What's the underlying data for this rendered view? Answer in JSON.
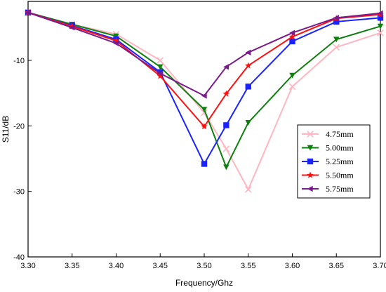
{
  "chart_data": {
    "type": "line",
    "title": "",
    "xlabel": "Frequency/Ghz",
    "ylabel": "S11/dB",
    "xlim": [
      3.3,
      3.7
    ],
    "ylim": [
      -40,
      -1
    ],
    "xticks": [
      "3.30",
      "3.35",
      "3.40",
      "3.45",
      "3.50",
      "3.55",
      "3.60",
      "3.65",
      "3.70"
    ],
    "yticks": [
      "-10",
      "-20",
      "-30",
      "-40"
    ],
    "x_tick_values": [
      3.3,
      3.35,
      3.4,
      3.45,
      3.5,
      3.55,
      3.6,
      3.65,
      3.7
    ],
    "y_tick_values": [
      -10,
      -20,
      -30,
      -40
    ],
    "grid": false,
    "legend_position": "right",
    "series": [
      {
        "name": "4.75mm",
        "color": "#ffb6c1",
        "marker": "x",
        "x": [
          3.3,
          3.35,
          3.4,
          3.45,
          3.5,
          3.525,
          3.55,
          3.6,
          3.65,
          3.7
        ],
        "y": [
          -2.7,
          -4.5,
          -6.0,
          -10.0,
          -18.0,
          -23.5,
          -29.7,
          -14.0,
          -8.0,
          -5.8
        ]
      },
      {
        "name": "5.00mm",
        "color": "#0f800f",
        "marker": "triangle-down",
        "x": [
          3.3,
          3.35,
          3.4,
          3.45,
          3.5,
          3.525,
          3.55,
          3.6,
          3.65,
          3.7
        ],
        "y": [
          -2.7,
          -4.5,
          -6.3,
          -11.0,
          -17.5,
          -26.3,
          -19.5,
          -12.3,
          -6.8,
          -4.8
        ]
      },
      {
        "name": "5.25mm",
        "color": "#1a23ff",
        "marker": "square",
        "x": [
          3.3,
          3.35,
          3.4,
          3.45,
          3.5,
          3.525,
          3.55,
          3.6,
          3.65,
          3.7
        ],
        "y": [
          -2.7,
          -4.7,
          -6.8,
          -11.8,
          -25.8,
          -19.9,
          -14.0,
          -7.1,
          -4.1,
          -3.5
        ]
      },
      {
        "name": "5.50mm",
        "color": "#ff1010",
        "marker": "star",
        "x": [
          3.3,
          3.35,
          3.4,
          3.45,
          3.5,
          3.525,
          3.55,
          3.6,
          3.65,
          3.7
        ],
        "y": [
          -2.7,
          -4.8,
          -7.0,
          -12.4,
          -20.1,
          -15.1,
          -10.8,
          -6.4,
          -3.6,
          -3.0
        ]
      },
      {
        "name": "5.75mm",
        "color": "#7a1a8c",
        "marker": "triangle-left",
        "x": [
          3.3,
          3.35,
          3.4,
          3.45,
          3.5,
          3.525,
          3.55,
          3.6,
          3.65,
          3.7
        ],
        "y": [
          -2.7,
          -5.0,
          -7.4,
          -12.0,
          -15.4,
          -11.0,
          -8.8,
          -5.8,
          -3.5,
          -2.8
        ]
      }
    ]
  }
}
